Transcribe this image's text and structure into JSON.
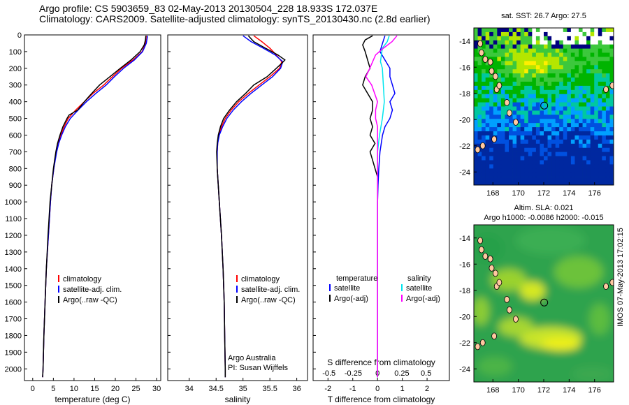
{
  "titles": {
    "line1": "Argo profile: CS 5903659_83 02-May-2013 20130504_228 18.933S 172.037E",
    "line2": "Climatology: CARS2009. Satellite-adjusted climatology: synTS_20130430.nc (2.8d earlier)"
  },
  "side_stamp": "IMOS 07-May-2013 17:02:15",
  "colors": {
    "climatology": "#ff0000",
    "satellite": "#0000ff",
    "argo": "#000000",
    "sat_salinity": "#00e5ee",
    "argo_salinity": "#ff00ff"
  },
  "chart_data": [
    {
      "type": "line",
      "name": "temperature-profile",
      "xlabel": "temperature (deg C)",
      "ylabel": "",
      "xlim": [
        -2,
        31
      ],
      "ylim": [
        2070,
        0
      ],
      "xticks": [
        0,
        5,
        10,
        15,
        20,
        25,
        30
      ],
      "yticks": [
        0,
        100,
        200,
        300,
        400,
        500,
        600,
        700,
        800,
        900,
        1000,
        1100,
        1200,
        1300,
        1400,
        1500,
        1600,
        1700,
        1800,
        1900,
        2000
      ],
      "legend": [
        "climatology",
        "satellite-adj. clim.",
        "Argo(..raw -QC)"
      ],
      "series": [
        {
          "name": "climatology",
          "depth": [
            5,
            50,
            100,
            150,
            200,
            250,
            300,
            350,
            400,
            450,
            500,
            550,
            600,
            650,
            700,
            800,
            900,
            1000,
            1200,
            1400,
            1600,
            1800,
            2000,
            2050
          ],
          "values": [
            27.5,
            27.3,
            26.5,
            24.3,
            21.5,
            19.3,
            17.2,
            14.6,
            12.5,
            10.4,
            8.6,
            7.6,
            6.8,
            6.2,
            5.7,
            5.1,
            4.6,
            4.3,
            3.8,
            3.3,
            3.0,
            2.7,
            2.5,
            2.4
          ]
        },
        {
          "name": "satellite-adj. clim.",
          "depth": [
            5,
            50,
            100,
            150,
            200,
            250,
            300,
            350,
            400,
            450,
            500,
            550,
            600,
            650,
            700,
            800,
            900,
            1000,
            1200,
            1400,
            1600,
            1800,
            2000,
            2050
          ],
          "values": [
            27.8,
            27.5,
            26.6,
            24.6,
            22.0,
            19.8,
            17.8,
            15.3,
            13.0,
            11.0,
            9.1,
            7.9,
            7.0,
            6.3,
            5.8,
            5.1,
            4.6,
            4.3,
            3.8,
            3.3,
            3.0,
            2.7,
            2.5,
            2.4
          ]
        },
        {
          "name": "Argo(..raw -QC)",
          "depth": [
            5,
            30,
            60,
            100,
            150,
            200,
            250,
            300,
            350,
            400,
            450,
            480,
            500,
            550,
            600,
            650,
            700,
            800,
            900,
            1000,
            1200,
            1400,
            1600,
            1800,
            2000,
            2050
          ],
          "values": [
            27.4,
            27.3,
            27.0,
            26.0,
            23.8,
            21.2,
            18.7,
            16.2,
            14.3,
            12.5,
            10.9,
            8.8,
            8.3,
            7.3,
            6.6,
            6.0,
            5.6,
            5.0,
            4.6,
            4.2,
            3.7,
            3.3,
            3.0,
            2.7,
            2.5,
            2.4
          ]
        }
      ]
    },
    {
      "type": "line",
      "name": "salinity-profile",
      "xlabel": "salinity",
      "xlim": [
        33.6,
        36.2
      ],
      "ylim": [
        2070,
        0
      ],
      "xticks": [
        34,
        34.5,
        35,
        35.5,
        36
      ],
      "legend": [
        "climatology",
        "satellite-adj. clim.",
        "Argo(..raw -QC)"
      ],
      "annotations": [
        "Argo Australia",
        "PI: Susan Wijffels"
      ],
      "series": [
        {
          "name": "climatology",
          "depth": [
            5,
            40,
            80,
            120,
            160,
            200,
            250,
            300,
            350,
            400,
            450,
            500,
            550,
            600,
            650,
            700,
            800,
            900,
            1000,
            1200,
            1400,
            1600,
            1800,
            2000,
            2050
          ],
          "values": [
            35.2,
            35.35,
            35.5,
            35.62,
            35.72,
            35.68,
            35.5,
            35.3,
            35.1,
            34.92,
            34.78,
            34.67,
            34.6,
            34.55,
            34.53,
            34.52,
            34.52,
            34.54,
            34.56,
            34.6,
            34.63,
            34.65,
            34.66,
            34.67,
            34.67
          ]
        },
        {
          "name": "satellite-adj. clim.",
          "depth": [
            5,
            40,
            80,
            120,
            160,
            200,
            250,
            300,
            350,
            400,
            450,
            500,
            550,
            600,
            650,
            700,
            800,
            900,
            1000,
            1200,
            1400,
            1600,
            1800,
            2000,
            2050
          ],
          "values": [
            35.0,
            35.15,
            35.38,
            35.6,
            35.74,
            35.7,
            35.55,
            35.35,
            35.15,
            34.97,
            34.82,
            34.7,
            34.62,
            34.56,
            34.53,
            34.52,
            34.52,
            34.54,
            34.56,
            34.6,
            34.63,
            34.65,
            34.66,
            34.67,
            34.67
          ]
        },
        {
          "name": "Argo(..raw -QC)",
          "depth": [
            5,
            40,
            80,
            120,
            150,
            170,
            200,
            250,
            300,
            350,
            400,
            450,
            500,
            550,
            600,
            650,
            700,
            800,
            900,
            1000,
            1200,
            1400,
            1600,
            1800,
            2000,
            2050
          ],
          "values": [
            35.1,
            35.2,
            35.42,
            35.65,
            35.78,
            35.72,
            35.62,
            35.45,
            35.2,
            35.05,
            34.88,
            34.75,
            34.64,
            34.58,
            34.54,
            34.52,
            34.51,
            34.52,
            34.54,
            34.56,
            34.6,
            34.63,
            34.65,
            34.66,
            34.67,
            34.67
          ]
        }
      ]
    },
    {
      "type": "line",
      "name": "difference-profile",
      "xlabel": "T difference from climatology",
      "xlabel_top": "S difference from climatology",
      "xlim": [
        -2.6,
        2.9
      ],
      "ylim": [
        2070,
        0
      ],
      "xticks": [
        -2,
        -1,
        0,
        1,
        2
      ],
      "xticks_s": [
        "-0.5",
        "-0.25",
        "0",
        "0.25",
        "0.5"
      ],
      "legend_temperature": {
        "title": "temperature",
        "items": [
          "satellite",
          "Argo(-adj)"
        ]
      },
      "legend_salinity": {
        "title": "salinity",
        "items": [
          "satellite",
          "Argo(-adj)"
        ]
      },
      "series": [
        {
          "name": "temperature satellite",
          "depth": [
            5,
            50,
            100,
            150,
            200,
            250,
            300,
            350,
            400,
            450,
            500,
            550,
            600,
            700,
            800,
            900,
            1000,
            1200,
            1500,
            1800,
            2050
          ],
          "values": [
            0.3,
            0.2,
            0.1,
            0.3,
            0.5,
            0.5,
            0.6,
            0.7,
            0.5,
            0.6,
            0.5,
            0.3,
            0.2,
            0.1,
            0.05,
            0.02,
            0.0,
            0.0,
            0.0,
            0.0,
            0.0
          ]
        },
        {
          "name": "temperature Argo(-adj)",
          "depth": [
            5,
            30,
            60,
            100,
            150,
            200,
            250,
            300,
            350,
            400,
            450,
            500,
            550,
            600,
            650,
            700,
            750,
            800,
            850,
            900,
            1000,
            1200,
            1500,
            1800,
            2050
          ],
          "values": [
            -0.2,
            -0.5,
            -0.6,
            -0.5,
            -0.4,
            -0.3,
            -0.5,
            -0.6,
            -0.4,
            -0.2,
            -0.2,
            -0.3,
            -0.2,
            -0.3,
            -0.1,
            -0.3,
            -0.2,
            -0.1,
            0.0,
            0.0,
            0.0,
            0.0,
            0.0,
            0.0,
            0.0
          ]
        },
        {
          "name": "salinity satellite",
          "depth": [
            5,
            40,
            80,
            120,
            160,
            200,
            300,
            400,
            500,
            600,
            700,
            800,
            1000,
            1500,
            2050
          ],
          "values": [
            0.12,
            0.1,
            0.05,
            0.04,
            0.03,
            0.05,
            0.06,
            0.07,
            0.05,
            0.02,
            0.0,
            0.0,
            0.0,
            0.0,
            0.0
          ]
        },
        {
          "name": "salinity Argo(-adj)",
          "depth": [
            5,
            40,
            80,
            120,
            160,
            200,
            250,
            300,
            350,
            400,
            450,
            500,
            550,
            600,
            700,
            800,
            1000,
            1500,
            2050
          ],
          "values": [
            0.2,
            0.15,
            0.06,
            -0.02,
            -0.05,
            -0.08,
            -0.12,
            -0.06,
            -0.03,
            0.0,
            -0.02,
            -0.02,
            0.0,
            0.0,
            0.0,
            0.0,
            0.0,
            0.0,
            0.0
          ]
        }
      ]
    },
    {
      "type": "heatmap",
      "name": "sst-map",
      "title": "sat. SST: 26.7  Argo: 27.5",
      "xlim": [
        166.5,
        177.5
      ],
      "ylim": [
        -25,
        -13
      ],
      "xticks": [
        168,
        170,
        172,
        174,
        176
      ],
      "yticks": [
        -14,
        -16,
        -18,
        -20,
        -22,
        -24
      ],
      "marker": {
        "lon": 172.037,
        "lat": -18.933
      }
    },
    {
      "type": "heatmap",
      "name": "sla-map",
      "title": "Altim. SLA: 0.021",
      "subtitle": "Argo h1000: -0.0086 h2000: -0.015",
      "xlim": [
        166.5,
        177.5
      ],
      "ylim": [
        -25,
        -13
      ],
      "xticks": [
        168,
        170,
        172,
        174,
        176
      ],
      "yticks": [
        -14,
        -16,
        -18,
        -20,
        -22,
        -24
      ],
      "marker": {
        "lon": 172.037,
        "lat": -18.933
      }
    }
  ]
}
